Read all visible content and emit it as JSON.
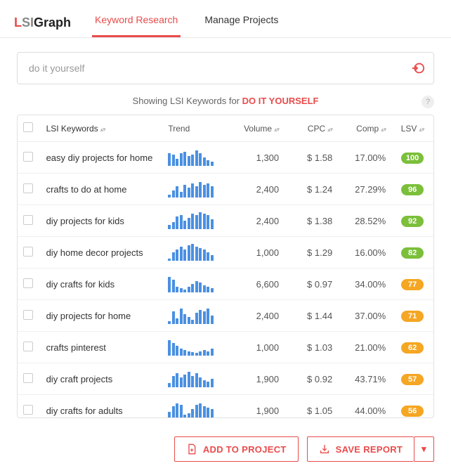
{
  "brand": {
    "l": "L",
    "s": "SI",
    "rest": "Graph"
  },
  "nav": {
    "tabs": [
      {
        "label": "Keyword Research",
        "active": true
      },
      {
        "label": "Manage Projects",
        "active": false
      }
    ]
  },
  "search": {
    "value": "do it yourself"
  },
  "info": {
    "prefix": "Showing LSI Keywords for ",
    "keyword": "DO IT YOURSELF",
    "help": "?"
  },
  "columns": {
    "kw": "LSI Keywords",
    "trend": "Trend",
    "volume": "Volume",
    "cpc": "CPC",
    "comp": "Comp",
    "lsv": "LSV"
  },
  "lsv_colors": {
    "green": "#7bbf3a",
    "orange": "#f5a623"
  },
  "spark_color": "#4a90e2",
  "rows": [
    {
      "keyword": "easy diy projects for home",
      "spark": [
        18,
        16,
        10,
        18,
        20,
        14,
        16,
        22,
        18,
        12,
        8,
        6
      ],
      "volume": "1,300",
      "cpc": "$ 1.58",
      "comp": "17.00%",
      "lsv": 100,
      "lsv_tier": "green"
    },
    {
      "keyword": "crafts to do at home",
      "spark": [
        4,
        10,
        16,
        8,
        18,
        14,
        20,
        16,
        22,
        18,
        20,
        16
      ],
      "volume": "2,400",
      "cpc": "$ 1.24",
      "comp": "27.29%",
      "lsv": 96,
      "lsv_tier": "green"
    },
    {
      "keyword": "diy projects for kids",
      "spark": [
        6,
        10,
        18,
        20,
        12,
        16,
        22,
        20,
        24,
        22,
        20,
        14
      ],
      "volume": "2,400",
      "cpc": "$ 1.38",
      "comp": "28.52%",
      "lsv": 92,
      "lsv_tier": "green"
    },
    {
      "keyword": "diy home decor projects",
      "spark": [
        3,
        12,
        16,
        20,
        16,
        22,
        24,
        20,
        18,
        16,
        12,
        8
      ],
      "volume": "1,000",
      "cpc": "$ 1.29",
      "comp": "16.00%",
      "lsv": 82,
      "lsv_tier": "green"
    },
    {
      "keyword": "diy crafts for kids",
      "spark": [
        22,
        18,
        8,
        6,
        4,
        8,
        12,
        16,
        14,
        10,
        8,
        6
      ],
      "volume": "6,600",
      "cpc": "$ 0.97",
      "comp": "34.00%",
      "lsv": 77,
      "lsv_tier": "orange"
    },
    {
      "keyword": "diy projects for home",
      "spark": [
        4,
        18,
        8,
        22,
        14,
        10,
        6,
        16,
        20,
        18,
        22,
        12
      ],
      "volume": "2,400",
      "cpc": "$ 1.44",
      "comp": "37.00%",
      "lsv": 71,
      "lsv_tier": "orange"
    },
    {
      "keyword": "crafts pinterest",
      "spark": [
        22,
        18,
        14,
        10,
        8,
        6,
        5,
        4,
        6,
        8,
        6,
        10
      ],
      "volume": "1,000",
      "cpc": "$ 1.03",
      "comp": "21.00%",
      "lsv": 62,
      "lsv_tier": "orange"
    },
    {
      "keyword": "diy craft projects",
      "spark": [
        6,
        16,
        20,
        14,
        18,
        22,
        16,
        20,
        14,
        10,
        8,
        12
      ],
      "volume": "1,900",
      "cpc": "$ 0.92",
      "comp": "43.71%",
      "lsv": 57,
      "lsv_tier": "orange"
    },
    {
      "keyword": "diy crafts for adults",
      "spark": [
        10,
        18,
        22,
        20,
        6,
        8,
        14,
        20,
        22,
        18,
        16,
        14
      ],
      "volume": "1,900",
      "cpc": "$ 1.05",
      "comp": "44.00%",
      "lsv": 56,
      "lsv_tier": "orange"
    }
  ],
  "footer": {
    "add": "ADD TO PROJECT",
    "save": "SAVE REPORT",
    "caret": "▾"
  }
}
